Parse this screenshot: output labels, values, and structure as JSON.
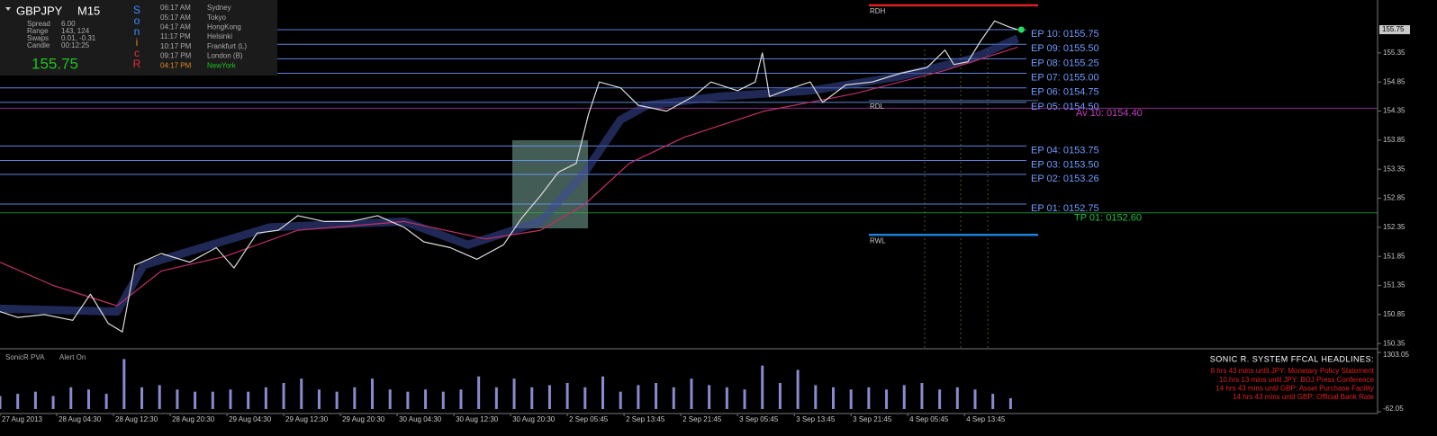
{
  "info": {
    "symbol": "GBPJPY",
    "timeframe": "M15",
    "rows": [
      [
        "Spread",
        "6.00"
      ],
      [
        "Range",
        "143, 124"
      ],
      [
        "Swaps",
        "0.01, -0.31"
      ],
      [
        "Candle",
        "00:12:25"
      ]
    ],
    "sonic": [
      "S",
      "o",
      "n",
      "i",
      "c",
      "R"
    ],
    "clocks": [
      [
        "06:17 AM",
        "Sydney"
      ],
      [
        "05:17 AM",
        "Tokyo"
      ],
      [
        "04:17 AM",
        "HongKong"
      ],
      [
        "11:17 PM",
        "Helsinki"
      ],
      [
        "10:17 PM",
        "Frankfurt (L)"
      ],
      [
        "09:17 PM",
        "London (B)"
      ],
      [
        "04:17 PM",
        "NewYork"
      ]
    ]
  },
  "indicator": {
    "name": "SonicR PVA",
    "status": "Alert On"
  },
  "headlines": {
    "title": "SONIC R. SYSTEM  FFCAL HEADLINES:",
    "items": [
      "8 hrs 43 mins until JPY: Monetary Policy Statement",
      "10 hrs 13 mins until JPY: BOJ Press Conference",
      "14 hrs 43 mins until GBP: Asset Purchase Facility",
      "14 hrs 43 mins until GBP: Official Bank Rate"
    ]
  },
  "chart_data": [
    {
      "type": "line",
      "xlim": [
        0,
        777
      ],
      "xticks": [
        {
          "value": 0,
          "label": "27 Aug 2013"
        },
        {
          "value": 32,
          "label": "28 Aug 04:30"
        },
        {
          "value": 64,
          "label": "28 Aug 12:30"
        },
        {
          "value": 96,
          "label": "28 Aug 20:30"
        },
        {
          "value": 128,
          "label": "29 Aug 04:30"
        },
        {
          "value": 160,
          "label": "29 Aug 12:30"
        },
        {
          "value": 192,
          "label": "29 Aug 20:30"
        },
        {
          "value": 224,
          "label": "30 Aug 04:30"
        },
        {
          "value": 256,
          "label": "30 Aug 12:30"
        },
        {
          "value": 288,
          "label": "30 Aug 20:30"
        },
        {
          "value": 320,
          "label": "2 Sep 05:45"
        },
        {
          "value": 352,
          "label": "2 Sep 13:45"
        },
        {
          "value": 384,
          "label": "2 Sep 21:45"
        },
        {
          "value": 416,
          "label": "3 Sep 05:45"
        },
        {
          "value": 448,
          "label": "3 Sep 13:45"
        },
        {
          "value": 480,
          "label": "3 Sep 21:45"
        },
        {
          "value": 512,
          "label": "4 Sep 05:45"
        },
        {
          "value": 544,
          "label": "4 Sep 13:45"
        }
      ],
      "ylim": [
        150.26,
        156.23
      ],
      "yticks": [
        150.35,
        150.85,
        151.35,
        151.85,
        152.35,
        152.85,
        153.35,
        153.85,
        154.35,
        154.85,
        155.35
      ],
      "last_price": 155.75,
      "series": [
        {
          "color": "#3a4a9a",
          "x": [
            0,
            66,
            81,
            152,
            228,
            264,
            305,
            330,
            350,
            365,
            406,
            457,
            508,
            548,
            574
          ],
          "values": [
            150.95,
            150.9,
            151.7,
            152.35,
            152.45,
            152.05,
            152.45,
            153.3,
            154.2,
            154.45,
            154.6,
            154.7,
            154.95,
            155.25,
            155.6
          ]
        },
        {
          "color": "#c0306a",
          "x": [
            0,
            30,
            66,
            91,
            127,
            168,
            228,
            274,
            305,
            330,
            355,
            386,
            431,
            482,
            533,
            574
          ],
          "values": [
            151.75,
            151.35,
            151.0,
            151.6,
            151.85,
            152.3,
            152.45,
            152.15,
            152.3,
            152.75,
            153.45,
            153.9,
            154.35,
            154.65,
            155.05,
            155.45
          ]
        },
        {
          "color": "#dcdcdc",
          "x": [
            0,
            10,
            25,
            41,
            51,
            61,
            69,
            76,
            91,
            107,
            122,
            132,
            145,
            157,
            168,
            183,
            198,
            213,
            228,
            239,
            254,
            269,
            284,
            294,
            305,
            315,
            325,
            332,
            338,
            350,
            360,
            376,
            391,
            401,
            416,
            426,
            430,
            434,
            447,
            457,
            464,
            477,
            492,
            508,
            523,
            533,
            538,
            546,
            553,
            561,
            569,
            574
          ],
          "values": [
            150.9,
            150.8,
            150.85,
            150.75,
            151.2,
            150.7,
            150.55,
            151.7,
            151.9,
            151.75,
            152.0,
            151.65,
            152.25,
            152.3,
            152.55,
            152.45,
            152.45,
            152.55,
            152.35,
            152.1,
            152.0,
            151.8,
            152.05,
            152.5,
            152.9,
            153.3,
            153.45,
            154.3,
            154.85,
            154.75,
            154.45,
            154.35,
            154.6,
            154.85,
            154.7,
            154.85,
            155.35,
            154.6,
            154.75,
            154.85,
            154.5,
            154.8,
            154.85,
            155.0,
            155.1,
            155.4,
            155.15,
            155.2,
            155.55,
            155.9,
            155.8,
            155.75
          ]
        }
      ],
      "levels": [
        {
          "label": "EP 10: 0155.75",
          "value": 155.75,
          "color": "#6f9cff"
        },
        {
          "label": "EP 09: 0155.50",
          "value": 155.5,
          "color": "#6f9cff"
        },
        {
          "label": "EP 08: 0155.25",
          "value": 155.25,
          "color": "#6f9cff"
        },
        {
          "label": "EP 07: 0155.00",
          "value": 155.0,
          "color": "#6f9cff"
        },
        {
          "label": "EP 06: 0154.75",
          "value": 154.75,
          "color": "#6f9cff"
        },
        {
          "label": "EP 05: 0154.50",
          "value": 154.5,
          "color": "#6f9cff"
        },
        {
          "label": "Av 10: 0154.40",
          "value": 154.4,
          "color": "#c040c0"
        },
        {
          "label": "EP 04: 0153.75",
          "value": 153.75,
          "color": "#6f9cff"
        },
        {
          "label": "EP 03: 0153.50",
          "value": 153.5,
          "color": "#6f9cff"
        },
        {
          "label": "EP 02: 0153.26",
          "value": 153.26,
          "color": "#6f9cff"
        },
        {
          "label": "EP 01: 0152.75",
          "value": 152.75,
          "color": "#6f9cff"
        },
        {
          "label": "TP 01: 0152.60",
          "value": 152.6,
          "color": "#22c040"
        }
      ],
      "session_levels": [
        {
          "label": "RDH",
          "value": 156.17,
          "color": "#e02020"
        },
        {
          "label": "RDL",
          "value": 154.53,
          "color": "#5a6a9a"
        },
        {
          "label": "RWL",
          "value": 152.22,
          "color": "#1e7fd8"
        }
      ]
    },
    {
      "type": "bar",
      "color": "#8a8ad0",
      "x": [
        0,
        10,
        20,
        30,
        40,
        50,
        60,
        70,
        80,
        90,
        100,
        110,
        120,
        130,
        140,
        150,
        160,
        170,
        180,
        190,
        200,
        210,
        220,
        230,
        240,
        250,
        260,
        270,
        280,
        290,
        300,
        310,
        320,
        330,
        340,
        350,
        360,
        370,
        380,
        390,
        400,
        410,
        420,
        430,
        440,
        450,
        460,
        470,
        480,
        490,
        500,
        510,
        520,
        530,
        540,
        550,
        560,
        570
      ],
      "values": [
        300,
        350,
        400,
        300,
        500,
        450,
        350,
        1150,
        500,
        550,
        450,
        400,
        400,
        450,
        400,
        500,
        600,
        700,
        450,
        400,
        500,
        700,
        450,
        400,
        450,
        400,
        450,
        750,
        500,
        700,
        500,
        550,
        600,
        500,
        750,
        400,
        550,
        600,
        500,
        700,
        550,
        500,
        450,
        1000,
        600,
        900,
        550,
        500,
        450,
        500,
        450,
        550,
        600,
        450,
        500,
        450,
        350,
        250
      ],
      "ylim": [
        -62.05,
        1303.05
      ],
      "yticks": [
        1303.05,
        -62.05
      ]
    }
  ]
}
